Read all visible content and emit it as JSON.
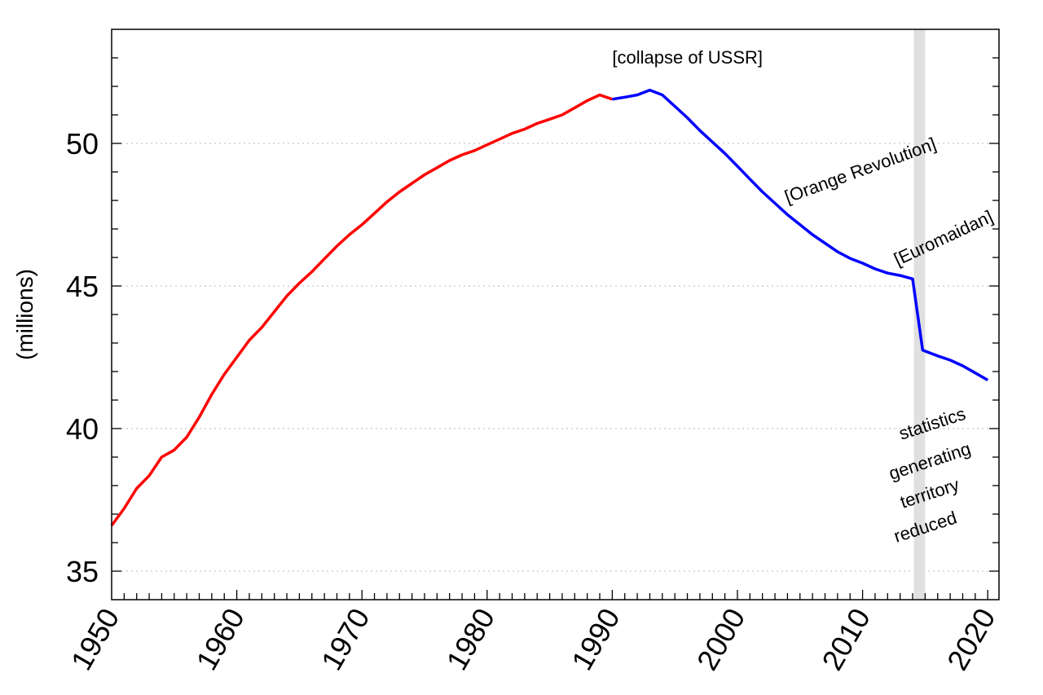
{
  "chart_data": {
    "type": "line",
    "title": "",
    "xlabel": "",
    "ylabel": "(millions)",
    "xlim": [
      1950,
      2020.9
    ],
    "ylim": [
      34,
      54
    ],
    "x_ticks": [
      1950,
      1960,
      1970,
      1980,
      1990,
      2000,
      2010,
      2020
    ],
    "y_ticks": [
      35,
      40,
      45,
      50
    ],
    "grid": "horizontal dotted",
    "series": [
      {
        "color": "#ff0000",
        "points": [
          [
            1950,
            36.6
          ],
          [
            1951,
            37.2
          ],
          [
            1952,
            37.9
          ],
          [
            1953,
            38.35
          ],
          [
            1954,
            39.0
          ],
          [
            1955,
            39.25
          ],
          [
            1956,
            39.7
          ],
          [
            1957,
            40.4
          ],
          [
            1958,
            41.2
          ],
          [
            1959,
            41.9
          ],
          [
            1960,
            42.5
          ],
          [
            1961,
            43.1
          ],
          [
            1962,
            43.55
          ],
          [
            1963,
            44.1
          ],
          [
            1964,
            44.65
          ],
          [
            1965,
            45.1
          ],
          [
            1966,
            45.5
          ],
          [
            1967,
            45.95
          ],
          [
            1968,
            46.4
          ],
          [
            1969,
            46.8
          ],
          [
            1970,
            47.15
          ],
          [
            1971,
            47.55
          ],
          [
            1972,
            47.95
          ],
          [
            1973,
            48.3
          ],
          [
            1974,
            48.6
          ],
          [
            1975,
            48.9
          ],
          [
            1976,
            49.15
          ],
          [
            1977,
            49.4
          ],
          [
            1978,
            49.6
          ],
          [
            1979,
            49.75
          ],
          [
            1980,
            49.95
          ],
          [
            1981,
            50.15
          ],
          [
            1982,
            50.35
          ],
          [
            1983,
            50.5
          ],
          [
            1984,
            50.7
          ],
          [
            1985,
            50.85
          ],
          [
            1986,
            51.0
          ],
          [
            1987,
            51.25
          ],
          [
            1988,
            51.5
          ],
          [
            1989,
            51.7
          ],
          [
            1990,
            51.55
          ]
        ]
      },
      {
        "color": "#0000ff",
        "points": [
          [
            1990,
            51.55
          ],
          [
            1991,
            51.62
          ],
          [
            1992,
            51.7
          ],
          [
            1993,
            51.87
          ],
          [
            1994,
            51.7
          ],
          [
            1995,
            51.3
          ],
          [
            1996,
            50.9
          ],
          [
            1997,
            50.45
          ],
          [
            1998,
            50.05
          ],
          [
            1999,
            49.65
          ],
          [
            2000,
            49.2
          ],
          [
            2001,
            48.75
          ],
          [
            2002,
            48.3
          ],
          [
            2003,
            47.9
          ],
          [
            2004,
            47.5
          ],
          [
            2005,
            47.15
          ],
          [
            2006,
            46.8
          ],
          [
            2007,
            46.5
          ],
          [
            2008,
            46.2
          ],
          [
            2009,
            45.97
          ],
          [
            2010,
            45.8
          ],
          [
            2011,
            45.6
          ],
          [
            2012,
            45.45
          ],
          [
            2013,
            45.37
          ],
          [
            2014,
            45.25
          ],
          [
            2014.8,
            42.75
          ],
          [
            2016,
            42.55
          ],
          [
            2017,
            42.4
          ],
          [
            2018,
            42.2
          ],
          [
            2019,
            41.95
          ],
          [
            2020,
            41.7
          ]
        ]
      }
    ],
    "shaded_band": {
      "x_from": 2014.1,
      "x_to": 2015.0,
      "color": "#e0e0e0"
    },
    "annotations": [
      {
        "text": "[collapse of USSR]",
        "x": 1990,
        "y": 52.8,
        "rotate": 0
      },
      {
        "text": "[Orange Revolution]",
        "x": 2004.0,
        "y": 47.9,
        "rotate": -20
      },
      {
        "text": "[Euromaidan]",
        "x": 2012.8,
        "y": 45.7,
        "rotate": -25
      },
      {
        "text": "statistics",
        "x": 2013.1,
        "y": 39.6,
        "rotate": -18
      },
      {
        "text": "generating",
        "x": 2012.3,
        "y": 38.2,
        "rotate": -18
      },
      {
        "text": "territory",
        "x": 2013.2,
        "y": 37.2,
        "rotate": -18
      },
      {
        "text": "reduced",
        "x": 2012.7,
        "y": 36.0,
        "rotate": -18
      }
    ]
  }
}
